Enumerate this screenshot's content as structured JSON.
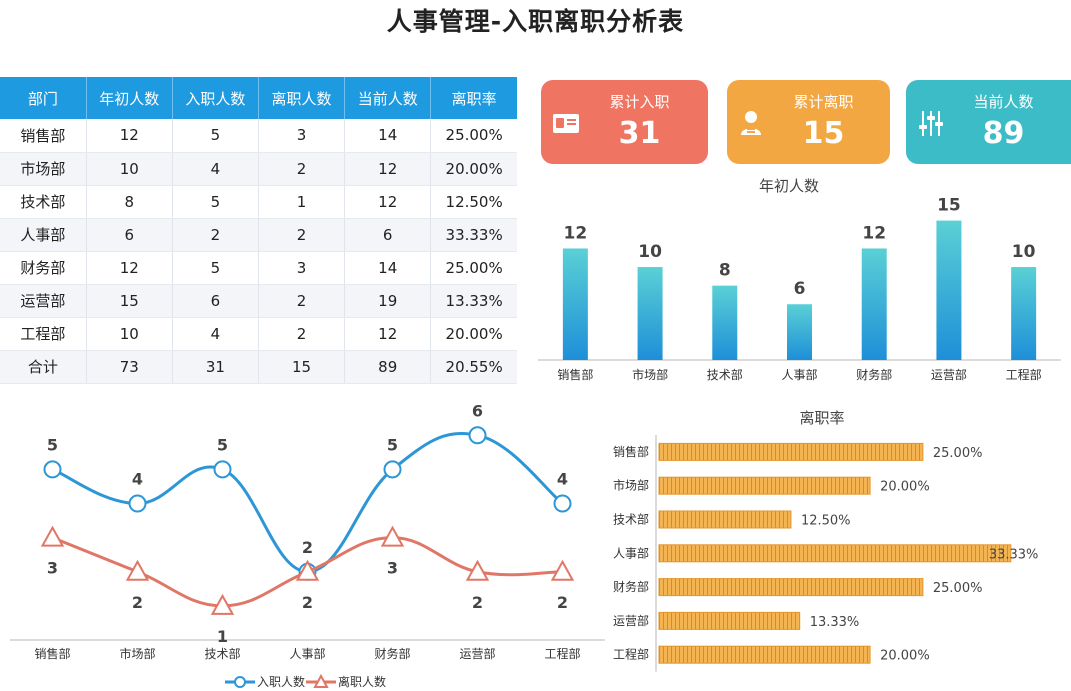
{
  "title": "人事管理-入职离职分析表",
  "colors": {
    "table_header": "#1e9be0",
    "card_join": "#ef7461",
    "card_leave": "#f3a743",
    "card_current": "#3bbcc6",
    "line_join": "#2c96d6",
    "line_leave": "#e07766",
    "bar_orange": "#f3a743"
  },
  "table": {
    "headers": [
      "部门",
      "年初人数",
      "入职人数",
      "离职人数",
      "当前人数",
      "离职率"
    ],
    "rows": [
      [
        "销售部",
        "12",
        "5",
        "3",
        "14",
        "25.00%"
      ],
      [
        "市场部",
        "10",
        "4",
        "2",
        "12",
        "20.00%"
      ],
      [
        "技术部",
        "8",
        "5",
        "1",
        "12",
        "12.50%"
      ],
      [
        "人事部",
        "6",
        "2",
        "2",
        "6",
        "33.33%"
      ],
      [
        "财务部",
        "12",
        "5",
        "3",
        "14",
        "25.00%"
      ],
      [
        "运营部",
        "15",
        "6",
        "2",
        "19",
        "13.33%"
      ],
      [
        "工程部",
        "10",
        "4",
        "2",
        "12",
        "20.00%"
      ],
      [
        "合计",
        "73",
        "31",
        "15",
        "89",
        "20.55%"
      ]
    ]
  },
  "kpis": [
    {
      "label": "累计入职",
      "value": "31",
      "icon": "id-card-icon"
    },
    {
      "label": "累计离职",
      "value": "15",
      "icon": "user-icon"
    },
    {
      "label": "当前人数",
      "value": "89",
      "icon": "sliders-icon"
    }
  ],
  "chart_data": [
    {
      "type": "bar",
      "title": "年初人数",
      "categories": [
        "销售部",
        "市场部",
        "技术部",
        "人事部",
        "财务部",
        "运营部",
        "工程部"
      ],
      "values": [
        12,
        10,
        8,
        6,
        12,
        15,
        10
      ],
      "ylim": [
        0,
        17
      ],
      "grid": false,
      "data_labels": true
    },
    {
      "type": "line",
      "title": "",
      "categories": [
        "销售部",
        "市场部",
        "技术部",
        "人事部",
        "财务部",
        "运营部",
        "工程部"
      ],
      "series": [
        {
          "name": "入职人数",
          "values": [
            5,
            4,
            5,
            2,
            5,
            6,
            4
          ],
          "marker": "circle",
          "color": "#2c96d6"
        },
        {
          "name": "离职人数",
          "values": [
            3,
            2,
            1,
            2,
            3,
            2,
            2
          ],
          "marker": "triangle",
          "color": "#e07766"
        }
      ],
      "ylim": [
        0,
        6.8
      ],
      "smooth": true,
      "legend": "bottom",
      "data_labels": true
    },
    {
      "type": "bar",
      "orientation": "horizontal",
      "title": "离职率",
      "categories": [
        "销售部",
        "市场部",
        "技术部",
        "人事部",
        "财务部",
        "运营部",
        "工程部"
      ],
      "values": [
        25.0,
        20.0,
        12.5,
        33.33,
        25.0,
        13.33,
        20.0
      ],
      "value_labels": [
        "25.00%",
        "20.00%",
        "12.50%",
        "33.33%",
        "25.00%",
        "13.33%",
        "20.00%"
      ],
      "xlim": [
        0,
        36
      ],
      "data_labels": true
    }
  ]
}
